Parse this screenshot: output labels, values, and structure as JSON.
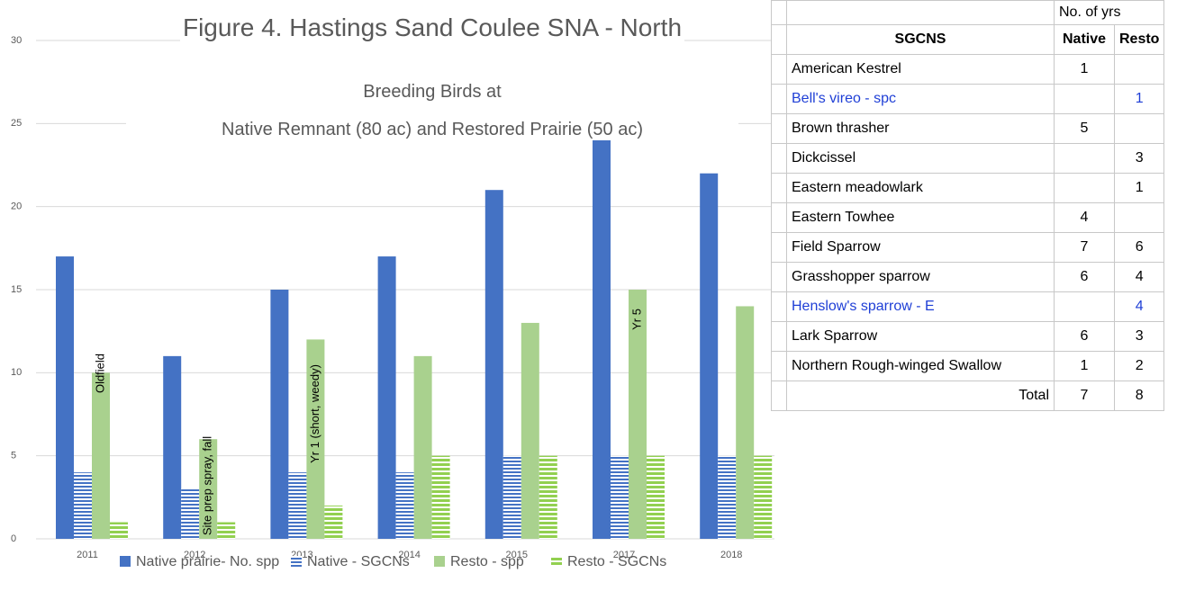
{
  "chart_data": {
    "type": "bar",
    "title": "Figure 4. Hastings Sand Coulee SNA - North",
    "subtitle": [
      "Breeding Birds at",
      "Native Remnant (80 ac)  and Restored Prairie (50 ac)"
    ],
    "categories": [
      "2011",
      "2012",
      "2013",
      "2014",
      "2015",
      "2017",
      "2018"
    ],
    "series": [
      {
        "name": "Native prairie- No. spp",
        "color": "#4472c4",
        "fill": "solid",
        "values": [
          17,
          11,
          15,
          17,
          21,
          24,
          22
        ]
      },
      {
        "name": "Native - SGCNs",
        "color": "#4472c4",
        "fill": "striped",
        "values": [
          4,
          3,
          4,
          4,
          5,
          5,
          5
        ]
      },
      {
        "name": "Resto - spp",
        "color": "#a9d18e",
        "fill": "solid",
        "values": [
          10,
          6,
          12,
          11,
          13,
          15,
          14
        ]
      },
      {
        "name": "Resto - SGCNs",
        "color": "#92d050",
        "fill": "striped",
        "values": [
          1,
          1,
          2,
          5,
          5,
          5,
          5
        ]
      }
    ],
    "annotations": [
      {
        "text": "Oldfield",
        "category": "2011"
      },
      {
        "text": "Site prep spray, fall",
        "category": "2012"
      },
      {
        "text": "Yr 1 (short, weedy)",
        "category": "2013"
      },
      {
        "text": "Yr 5",
        "category": "2017"
      }
    ],
    "ylim": [
      0,
      30
    ],
    "yticks": [
      0,
      5,
      10,
      15,
      20,
      25,
      30
    ],
    "grid": true,
    "legend": "bottom"
  },
  "table": {
    "group_header": "No. of yrs",
    "columns": [
      "SGCNS",
      "Native",
      "Resto"
    ],
    "rows": [
      {
        "species": "American Kestrel",
        "native": 1,
        "resto": null
      },
      {
        "species": "Bell's vireo - spc",
        "native": null,
        "resto": 1,
        "color": "#1f3fd6"
      },
      {
        "species": "Brown thrasher",
        "native": 5,
        "resto": null
      },
      {
        "species": "Dickcissel",
        "native": null,
        "resto": 3
      },
      {
        "species": "Eastern meadowlark",
        "native": null,
        "resto": 1
      },
      {
        "species": "Eastern Towhee",
        "native": 4,
        "resto": null
      },
      {
        "species": "Field Sparrow",
        "native": 7,
        "resto": 6
      },
      {
        "species": "Grasshopper sparrow",
        "native": 6,
        "resto": 4
      },
      {
        "species": "Henslow's sparrow - E",
        "native": null,
        "resto": 4,
        "color": "#1f3fd6"
      },
      {
        "species": "Lark Sparrow",
        "native": 6,
        "resto": 3
      },
      {
        "species": "Northern Rough-winged Swallow",
        "native": 1,
        "resto": 2
      }
    ],
    "total": {
      "label": "Total",
      "native": 7,
      "resto": 8
    }
  }
}
